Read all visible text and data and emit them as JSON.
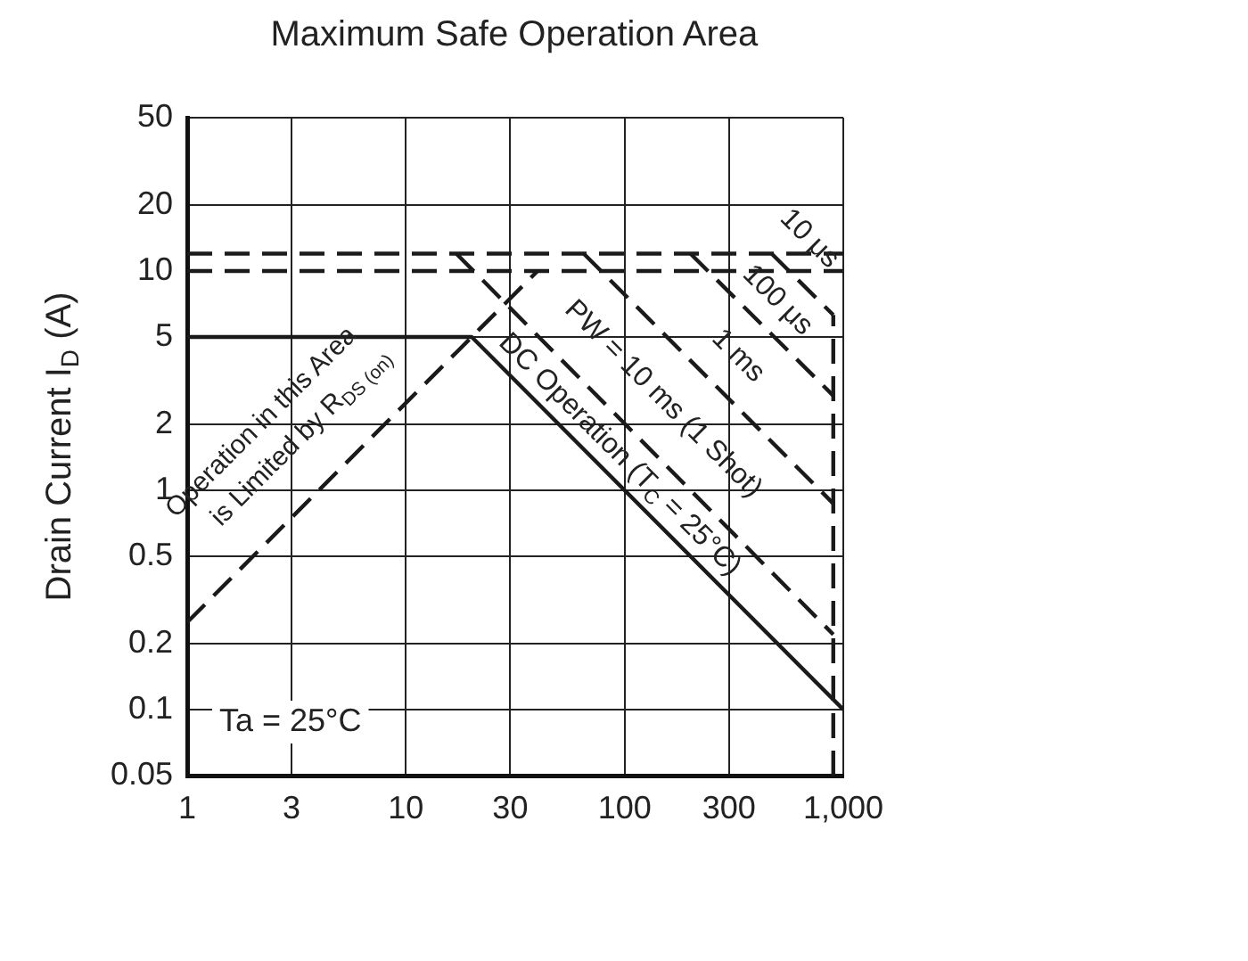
{
  "chart_data": {
    "type": "line",
    "title": "Maximum Safe Operation Area",
    "ylabel": "Drain Current I$_{D}$ (A)",
    "log": "xy",
    "grid": true,
    "marker": "none",
    "legend": false,
    "xlim": [
      1,
      1000
    ],
    "xticks": [
      1,
      3,
      10,
      30,
      100,
      300,
      {
        "value": 1000,
        "label": "1,000"
      }
    ],
    "ylim": [
      0.05,
      50
    ],
    "yticks": [
      0.05,
      0.1,
      0.2,
      0.5,
      1,
      2,
      5,
      10,
      20,
      50
    ],
    "series": [
      {
        "color": "#1a1a1a",
        "line_style": "dashed",
        "x": [
          1,
          40
        ],
        "values": [
          0.25,
          10
        ]
      },
      {
        "color": "#1a1a1a",
        "line_style": "dashed",
        "x": [
          1,
          1000
        ],
        "values": [
          12,
          12
        ]
      },
      {
        "color": "#1a1a1a",
        "line_style": "dashed",
        "x": [
          1,
          1000
        ],
        "values": [
          10,
          10
        ]
      },
      {
        "color": "#1a1a1a",
        "line_style": "solid",
        "x": [
          1,
          20,
          1000
        ],
        "values": [
          5,
          5,
          0.1
        ]
      },
      {
        "color": "#1a1a1a",
        "line_style": "dashed",
        "x": [
          17,
          900
        ],
        "values": [
          12,
          0.22
        ]
      },
      {
        "color": "#1a1a1a",
        "line_style": "dashed",
        "x": [
          65,
          900
        ],
        "values": [
          12,
          0.87
        ]
      },
      {
        "color": "#1a1a1a",
        "line_style": "dashed",
        "x": [
          200,
          900
        ],
        "values": [
          12,
          2.7
        ]
      },
      {
        "color": "#1a1a1a",
        "line_style": "dashed",
        "x": [
          470,
          900
        ],
        "values": [
          12,
          6.3
        ]
      },
      {
        "color": "#1a1a1a",
        "line_style": "dashed",
        "x": [
          900,
          900
        ],
        "values": [
          0.05,
          6.3
        ]
      }
    ],
    "annotations": [
      "Operation in this Area",
      "is Limited by R$_{DS (on)}$",
      "DC Operation (T$_{C}$ = 25°C)",
      "PW = 10 ms (1 Shot)",
      "1 ms",
      "100 μs",
      "10 μs",
      "Ta = 25°C"
    ]
  }
}
